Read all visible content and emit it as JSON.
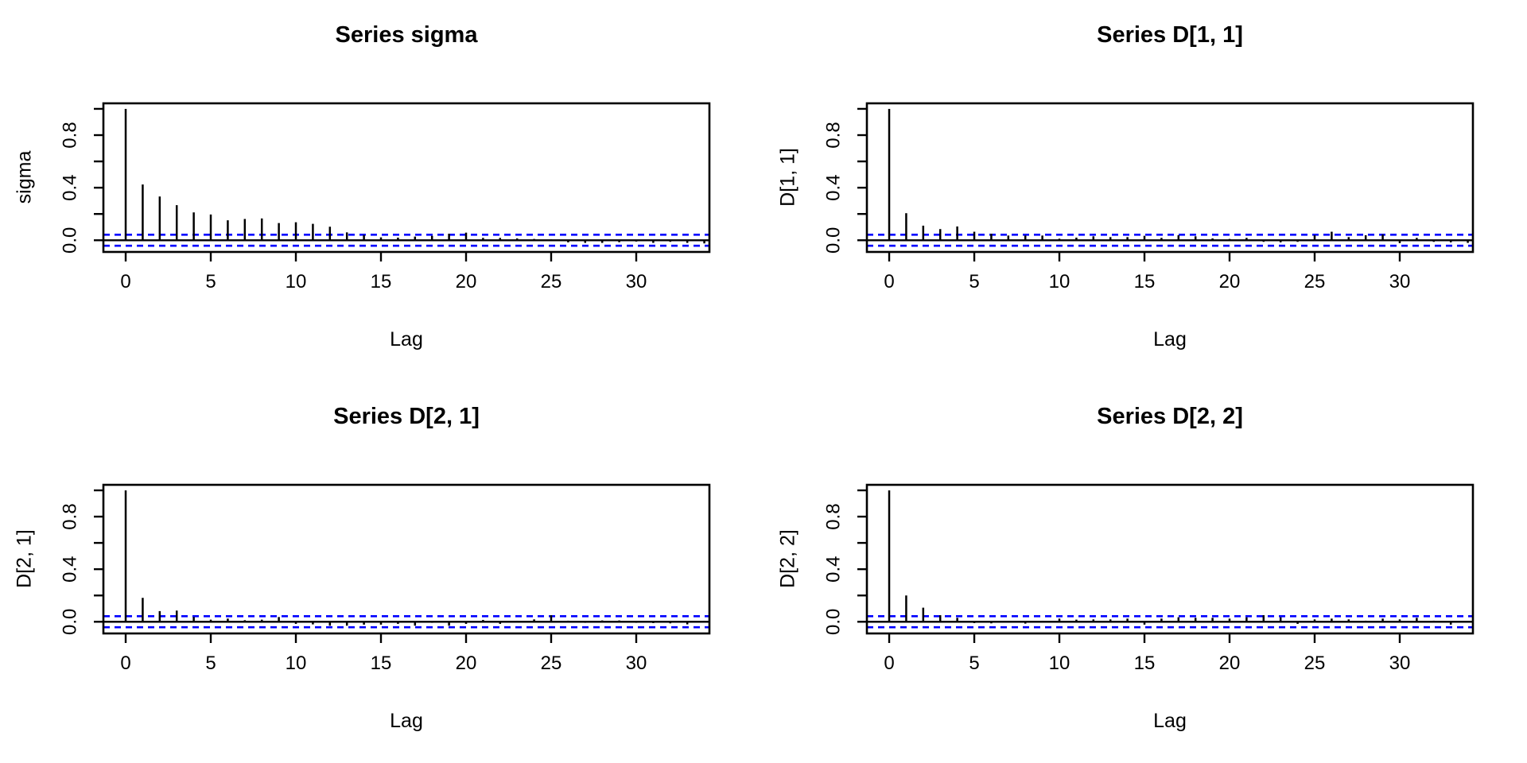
{
  "figure": {
    "background": "#FFFFFF"
  },
  "styles": {
    "bar_color": "#000000",
    "axis_color": "#000000",
    "text_color": "#000000",
    "confidence_line_color": "#0000FF"
  },
  "chart_data": [
    {
      "type": "bar",
      "title": "Series sigma",
      "xlabel": "Lag",
      "ylabel": "sigma",
      "x": [
        0,
        1,
        2,
        3,
        4,
        5,
        6,
        7,
        8,
        9,
        10,
        11,
        12,
        13,
        14,
        15,
        16,
        17,
        18,
        19,
        20,
        21,
        22,
        23,
        24,
        25,
        26,
        27,
        28,
        29,
        30,
        31,
        32,
        33,
        34
      ],
      "values": [
        1.0,
        0.424,
        0.333,
        0.267,
        0.212,
        0.196,
        0.152,
        0.162,
        0.166,
        0.131,
        0.137,
        0.125,
        0.103,
        0.06,
        0.04,
        0.022,
        0.02,
        0.028,
        0.034,
        0.05,
        0.058,
        0.018,
        0.018,
        0.014,
        0.01,
        0.006,
        -0.016,
        -0.02,
        -0.02,
        -0.015,
        -0.01,
        -0.02,
        -0.012,
        -0.02,
        -0.024
      ],
      "confidence_bounds": [
        -0.042,
        0.042
      ],
      "confidence_style": "dashed",
      "xticks": [
        0,
        5,
        10,
        15,
        20,
        25,
        30
      ],
      "ytick_labels": [
        {
          "value": 0,
          "label": "0.0"
        },
        {
          "value": 0.4,
          "label": "0.4"
        },
        {
          "value": 0.8,
          "label": "0.8"
        }
      ],
      "yticks_minor": [
        0,
        0.2,
        0.4,
        0.6,
        0.8,
        1.0
      ],
      "ylim": [
        -0.089,
        1.042
      ],
      "xlim": [
        -1.31,
        34.3
      ],
      "grid": false,
      "legend": null
    },
    {
      "type": "bar",
      "title": "Series D[1, 1]",
      "xlabel": "Lag",
      "ylabel": "D[1, 1]",
      "x": [
        0,
        1,
        2,
        3,
        4,
        5,
        6,
        7,
        8,
        9,
        10,
        11,
        12,
        13,
        14,
        15,
        16,
        17,
        18,
        19,
        20,
        21,
        22,
        23,
        24,
        25,
        26,
        27,
        28,
        29,
        30,
        31,
        32,
        33,
        34
      ],
      "values": [
        1.0,
        0.206,
        0.111,
        0.085,
        0.105,
        0.065,
        0.05,
        0.036,
        0.036,
        0.036,
        0.012,
        0.02,
        0.03,
        0.024,
        0.024,
        0.034,
        0.018,
        0.038,
        0.03,
        0.014,
        0.01,
        0.018,
        -0.012,
        -0.016,
        -0.012,
        0.038,
        0.065,
        0.024,
        0.038,
        0.044,
        -0.022,
        0.018,
        -0.012,
        -0.016,
        -0.02
      ],
      "confidence_bounds": [
        -0.042,
        0.042
      ],
      "confidence_style": "dashed",
      "xticks": [
        0,
        5,
        10,
        15,
        20,
        25,
        30
      ],
      "ytick_labels": [
        {
          "value": 0,
          "label": "0.0"
        },
        {
          "value": 0.4,
          "label": "0.4"
        },
        {
          "value": 0.8,
          "label": "0.8"
        }
      ],
      "yticks_minor": [
        0,
        0.2,
        0.4,
        0.6,
        0.8,
        1.0
      ],
      "ylim": [
        -0.089,
        1.042
      ],
      "xlim": [
        -1.31,
        34.3
      ],
      "grid": false,
      "legend": null
    },
    {
      "type": "bar",
      "title": "Series D[2, 1]",
      "xlabel": "Lag",
      "ylabel": "D[2, 1]",
      "x": [
        0,
        1,
        2,
        3,
        4,
        5,
        6,
        7,
        8,
        9,
        10,
        11,
        12,
        13,
        14,
        15,
        16,
        17,
        18,
        19,
        20,
        21,
        22,
        23,
        24,
        25,
        26,
        27,
        28,
        29,
        30,
        31,
        32,
        33,
        34
      ],
      "values": [
        1.0,
        0.182,
        0.081,
        0.085,
        0.036,
        0.016,
        0.024,
        0.012,
        0.016,
        0.036,
        -0.016,
        -0.02,
        -0.03,
        -0.03,
        -0.022,
        -0.022,
        -0.016,
        -0.03,
        -0.008,
        -0.03,
        -0.016,
        0.014,
        -0.016,
        0.006,
        0.018,
        0.05,
        0.008,
        -0.008,
        0.01,
        0.01,
        -0.008,
        -0.01,
        -0.012,
        -0.02,
        0.006
      ],
      "confidence_bounds": [
        -0.042,
        0.042
      ],
      "confidence_style": "dashed",
      "xticks": [
        0,
        5,
        10,
        15,
        20,
        25,
        30
      ],
      "ytick_labels": [
        {
          "value": 0,
          "label": "0.0"
        },
        {
          "value": 0.4,
          "label": "0.4"
        },
        {
          "value": 0.8,
          "label": "0.8"
        }
      ],
      "yticks_minor": [
        0,
        0.2,
        0.4,
        0.6,
        0.8,
        1.0
      ],
      "ylim": [
        -0.089,
        1.042
      ],
      "xlim": [
        -1.31,
        34.3
      ],
      "grid": false,
      "legend": null
    },
    {
      "type": "bar",
      "title": "Series D[2, 2]",
      "xlabel": "Lag",
      "ylabel": "D[2, 2]",
      "x": [
        0,
        1,
        2,
        3,
        4,
        5,
        6,
        7,
        8,
        9,
        10,
        11,
        12,
        13,
        14,
        15,
        16,
        17,
        18,
        19,
        20,
        21,
        22,
        23,
        24,
        25,
        26,
        27,
        28,
        29,
        30,
        31,
        32,
        33,
        34
      ],
      "values": [
        1.0,
        0.2,
        0.107,
        0.05,
        0.03,
        -0.01,
        -0.012,
        0.004,
        -0.014,
        0.006,
        0.024,
        0.016,
        0.018,
        0.018,
        0.024,
        -0.022,
        0.024,
        0.034,
        0.03,
        0.03,
        0.024,
        0.034,
        0.05,
        0.034,
        -0.016,
        0.018,
        0.024,
        0.018,
        0.008,
        0.024,
        0.018,
        0.03,
        0.008,
        -0.022,
        0.004
      ],
      "confidence_bounds": [
        -0.042,
        0.042
      ],
      "confidence_style": "dashed",
      "xticks": [
        0,
        5,
        10,
        15,
        20,
        25,
        30
      ],
      "ytick_labels": [
        {
          "value": 0,
          "label": "0.0"
        },
        {
          "value": 0.4,
          "label": "0.4"
        },
        {
          "value": 0.8,
          "label": "0.8"
        }
      ],
      "yticks_minor": [
        0,
        0.2,
        0.4,
        0.6,
        0.8,
        1.0
      ],
      "ylim": [
        -0.089,
        1.042
      ],
      "xlim": [
        -1.31,
        34.3
      ],
      "grid": false,
      "legend": null
    }
  ]
}
